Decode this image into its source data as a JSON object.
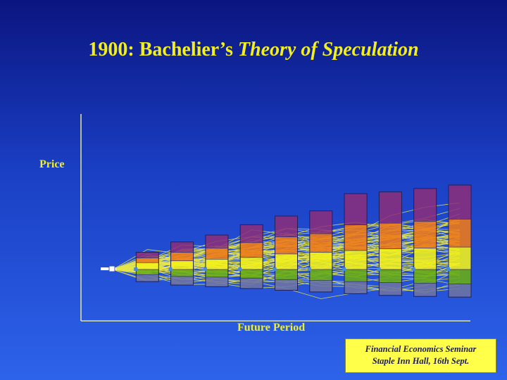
{
  "title": {
    "main": "1900:  Bachelier’s ",
    "italic": "Theory of Speculation"
  },
  "footer": {
    "line1": "Financial Economics Seminar",
    "line2": "Staple Inn Hall, 16th Sept."
  },
  "colors": {
    "background": "#1a3fc4",
    "text": "#f2ef1c",
    "axis": "#e8e890",
    "paths": "#e6e64a",
    "band_top": "#8e2e7a",
    "band_orange": "#f07a18",
    "band_yellow": "#f4f218",
    "band_green": "#6aae14",
    "band_grey": "#6e74a4"
  },
  "chart_data": {
    "type": "area",
    "title": "1900:  Bachelier’s Theory of Speculation",
    "xlabel": "Future Period",
    "ylabel": "Price",
    "grid": false,
    "legend": "none",
    "x_range": [
      0,
      10
    ],
    "y_range": [
      -1.1,
      2.7
    ],
    "start_price": 0,
    "periods": [
      1,
      2,
      3,
      4,
      5,
      6,
      7,
      8,
      9,
      10
    ],
    "bands": {
      "top": [
        0.5,
        0.8,
        1.0,
        1.3,
        1.55,
        1.7,
        2.2,
        2.25,
        2.35,
        2.45
      ],
      "upper": [
        0.2,
        0.25,
        0.3,
        0.35,
        0.45,
        0.5,
        0.55,
        0.6,
        0.62,
        0.65
      ],
      "median": [
        0,
        0,
        0,
        0,
        0,
        0,
        0,
        0,
        0,
        0
      ],
      "lower": [
        -0.15,
        -0.2,
        -0.22,
        -0.25,
        -0.3,
        -0.32,
        -0.35,
        -0.38,
        -0.4,
        -0.42
      ],
      "bottom": [
        -0.35,
        -0.45,
        -0.5,
        -0.55,
        -0.6,
        -0.65,
        -0.7,
        -0.75,
        -0.78,
        -0.8
      ]
    }
  }
}
